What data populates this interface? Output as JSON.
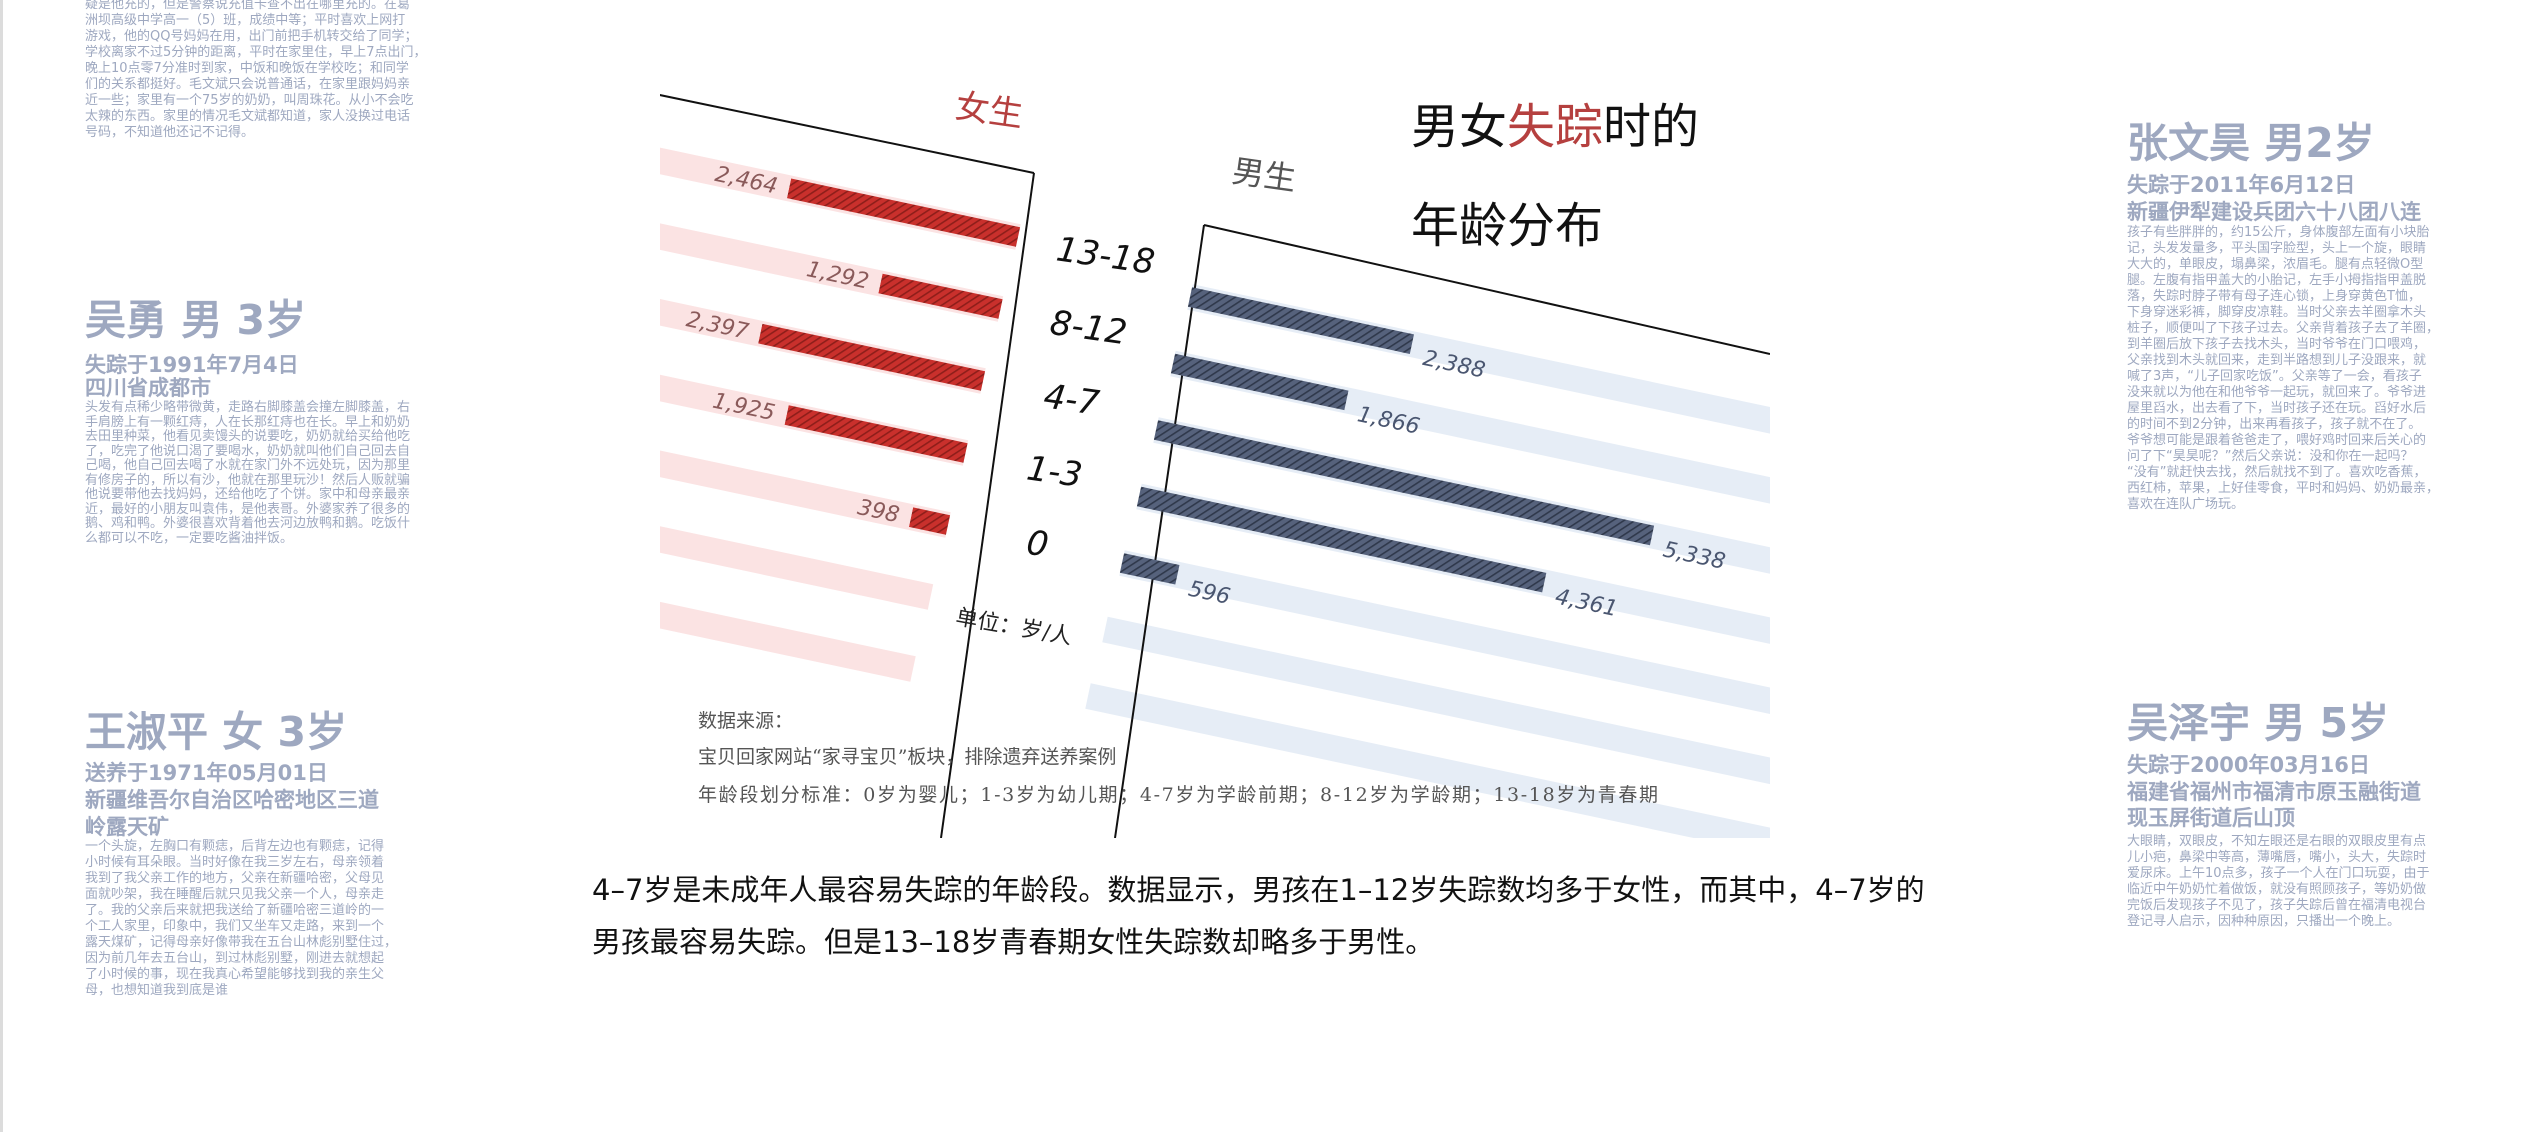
{
  "profiles": [
    {
      "id": "partial-top",
      "body_lines": [
        "疑是他充的，但是警察说充值卡查不出在哪里充的。在葛",
        "洲坝高级中学高一（5）班，成绩中等；平时喜欢上网打",
        "游戏，他的QQ号妈妈在用，出门前把手机转交给了同学；",
        "学校离家不过5分钟的距离，平时在家里住，早上7点出门，",
        "晚上10点零7分准时到家，中饭和晚饭在学校吃；和同学",
        "们的关系都挺好。毛文斌只会说普通话，在家里跟妈妈亲",
        "近一些；家里有一个75岁的奶奶，叫周珠花。从小不会吃",
        "太辣的东西。家里的情况毛文斌都知道，家人没换过电话",
        "号码，不知道他还记不记得。"
      ]
    },
    {
      "id": "wu-yong",
      "name": "吴勇 男 3岁",
      "sub_lines": [
        "失踪于1991年7月4日",
        "四川省成都市"
      ],
      "body_lines": [
        "头发有点稀少略带微黄，走路右脚膝盖会撞左脚膝盖，右",
        "手肩膀上有一颗红痔，人在长那红痔也在长。早上和奶奶",
        "去田里种菜，他看见卖馒头的说要吃，奶奶就给买给他吃",
        "了，吃完了他说口渴了要喝水，奶奶就叫他们自己回去自",
        "己喝，他自己回去喝了水就在家门外不远处玩，因为那里",
        "有修房子的，所以有沙，他就在那里玩沙！然后人贩就骗",
        "他说要带他去找妈妈，还给他吃了个饼。家中和母亲最亲",
        "近，最好的小朋友叫袁伟，是他表哥。外婆家养了很多的",
        "鹅、鸡和鸭。外婆很喜欢背着他去河边放鸭和鹅。吃饭什",
        "么都可以不吃，一定要吃酱油拌饭。"
      ]
    },
    {
      "id": "wang-shuping",
      "name": "王淑平 女 3岁",
      "sub_lines": [
        "送养于1971年05月01日",
        "新疆维吾尔自治区哈密地区三道",
        "岭露天矿"
      ],
      "body_lines": [
        "一个头旋，左胸口有颗痣，后背左边也有颗痣，记得",
        "小时候有耳朵眼。当时好像在我三岁左右，母亲领着",
        "我到了我父亲工作的地方，父亲在新疆哈密，父母见",
        "面就吵架，我在睡醒后就只见我父亲一个人，母亲走",
        "了。我的父亲后来就把我送给了新疆哈密三道岭的一",
        "个工人家里，印象中，我们又坐车又走路，来到一个",
        "露天煤矿，记得母亲好像带我在五台山林彪别墅住过，",
        "因为前几年去五台山，到过林彪别墅，刚进去就想起",
        "了小时候的事，现在我真心希望能够找到我的亲生父",
        "母，也想知道我到底是谁"
      ]
    },
    {
      "id": "zhang-wenhao",
      "name": "张文昊 男2岁",
      "sub_lines": [
        "失踪于2011年6月12日",
        "新疆伊犁建设兵团六十八团八连"
      ],
      "body_lines": [
        "孩子有些胖胖的，约15公斤，身体腹部左面有小块胎",
        "记，头发发量多，平头国字脸型，头上一个旋，眼睛",
        "大大的，单眼皮，塌鼻梁，浓眉毛。腿有点轻微O型",
        "腿。左腹有指甲盖大的小胎记，左手小拇指指甲盖脱",
        "落，失踪时脖子带有母子连心锁，上身穿黄色T恤，",
        "下身穿迷彩裤，脚穿皮凉鞋。当时父亲去羊圈拿木头",
        "桩子，顺便叫了下孩子过去。父亲背着孩子去了羊圈，",
        "到羊圈后放下孩子去找木头，当时爷爷在门口喂鸡，",
        "父亲找到木头就回来，走到半路想到儿子没跟来，就",
        "喊了3声，“儿子回家吃饭”。父亲等了一会，看孩子",
        "没来就以为他在和他爷爷一起玩，就回来了。爷爷进",
        "屋里舀水，出去看了下，当时孩子还在玩。舀好水后",
        "的时间不到2分钟，出来再看孩子，孩子就不在了。",
        "爷爷想可能是跟着爸爸走了，喂好鸡时回来后关心的",
        "问了下“昊昊呢？”然后父亲说：没和你在一起吗？",
        "“没有”就赶快去找，然后就找不到了。喜欢吃香蕉，",
        "西红柿，苹果，上好佳零食，平时和妈妈、奶奶最亲，",
        "喜欢在连队广场玩。"
      ]
    },
    {
      "id": "wu-zeyu",
      "name": "吴泽宇 男 5岁",
      "sub_lines": [
        "失踪于2000年03月16日",
        "福建省福州市福清市原玉融街道",
        "现玉屏街道后山顶"
      ],
      "body_lines": [
        "大眼睛，双眼皮，不知左眼还是右眼的双眼皮里有点",
        "儿小疤，鼻梁中等高，薄嘴唇，嘴小，头大，失踪时",
        "爱尿床。上午10点多，孩子一个人在门口玩耍，由于",
        "临近中午奶奶忙着做饭，就没有照顾孩子，等奶奶做",
        "完饭后发现孩子不见了，孩子失踪后曾在福清电视台",
        "登记寻人启示，因种种原因，只播出一个晚上。"
      ]
    }
  ],
  "chart_data": {
    "type": "bar",
    "title_parts": [
      "男女",
      "失踪",
      "时的"
    ],
    "title_line2": "年龄分布",
    "categories": [
      "13-18",
      "8-12",
      "4-7",
      "1-3",
      "0"
    ],
    "series": [
      {
        "name": "女生",
        "values": [
          2464,
          1292,
          2397,
          1925,
          398
        ],
        "labels": [
          "2,464",
          "1,292",
          "2,397",
          "1,925",
          "398"
        ],
        "color": "#c9302c"
      },
      {
        "name": "男生",
        "values": [
          2388,
          1866,
          5338,
          4361,
          596
        ],
        "labels": [
          "2,388",
          "1,866",
          "5,338",
          "4,361",
          "596"
        ],
        "color": "#4a5670"
      }
    ],
    "unit_label": "单位：岁/人",
    "source_lines": [
      "数据来源：",
      "宝贝回家网站“家寻宝贝”板块，排除遗弃送养案例",
      "年龄段划分标准：0岁为婴儿；1-3岁为幼儿期；4-7岁为学龄前期；8-12岁为学龄期；13-18岁为青春期"
    ],
    "highlight_color": "#b5403f",
    "xlabel": "",
    "ylabel": ""
  },
  "article": {
    "paragraph": "4–7岁是未成年人最容易失踪的年龄段。数据显示，男孩在1–12岁失踪数均多于女性，而其中，4–7岁的男孩最容易失踪。但是13–18岁青春期女性失踪数却略多于男性。"
  }
}
